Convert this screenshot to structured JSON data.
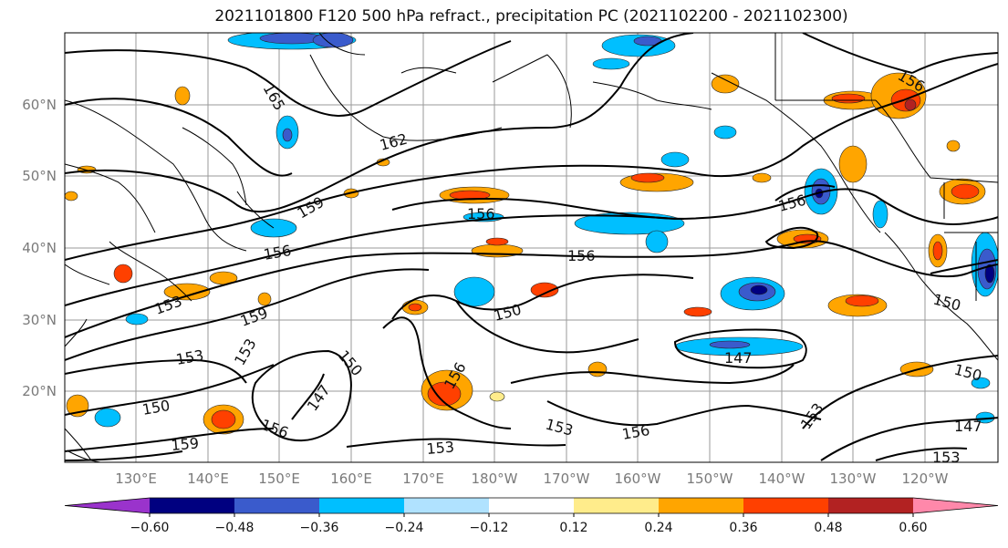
{
  "title": "2021101800 F120 500 hPa refract., precipitation PC (2021102200 - 2021102300)",
  "map": {
    "lat_labels": [
      "60°N",
      "50°N",
      "40°N",
      "30°N",
      "20°N"
    ],
    "lon_labels": [
      "130°E",
      "140°E",
      "150°E",
      "160°E",
      "170°E",
      "180°W",
      "170°W",
      "160°W",
      "150°W",
      "140°W",
      "130°W",
      "120°W"
    ],
    "contour_labels": [
      "165",
      "162",
      "159",
      "156",
      "156",
      "156",
      "153",
      "159",
      "153",
      "153",
      "150",
      "150",
      "150",
      "147",
      "156",
      "159",
      "156",
      "153",
      "156",
      "153",
      "147",
      "150",
      "150",
      "147",
      "153",
      "156",
      "153",
      "156"
    ]
  },
  "colorbar": {
    "colors": [
      "#9a33cc",
      "#000080",
      "#3a5bcc",
      "#00bfff",
      "#b0e2ff",
      "#ffffff",
      "#ffec8b",
      "#ffa500",
      "#ff4000",
      "#b22222",
      "#ff88aa"
    ],
    "tick_labels": [
      "−0.60",
      "−0.48",
      "−0.36",
      "−0.24",
      "−0.12",
      "0.12",
      "0.24",
      "0.36",
      "0.48",
      "0.60"
    ]
  }
}
